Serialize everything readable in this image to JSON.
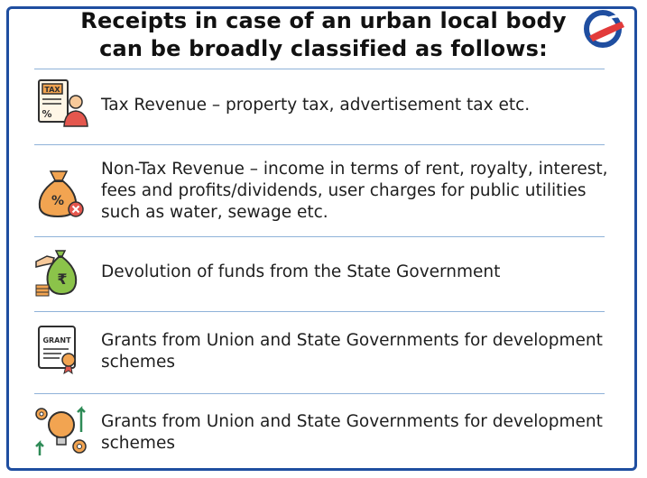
{
  "title": {
    "line1": "Receipts in case of an urban local body",
    "line2": "can be broadly classified as follows:"
  },
  "brand_logo": "drishti-logo",
  "colors": {
    "border": "#1f4ea0",
    "divider": "#8fb2d9",
    "icon_dark": "#2f2f2f",
    "icon_orange": "#f2a451",
    "icon_red": "#e4574e"
  },
  "items": [
    {
      "icon": "tax-document-icon",
      "text": "Tax Revenue – property tax, advertisement tax etc."
    },
    {
      "icon": "money-bag-percent-icon",
      "text": "Non-Tax Revenue – income in terms of rent, royalty, interest, fees and profits/dividends, user charges for public utilities such as water, sewage etc."
    },
    {
      "icon": "rupee-fund-transfer-icon",
      "text": "Devolution of funds from the State Government"
    },
    {
      "icon": "grant-certificate-icon",
      "text": "Grants from Union and State Governments for development schemes"
    },
    {
      "icon": "development-idea-icon",
      "text": "Grants from Union and State Governments for development schemes"
    }
  ]
}
